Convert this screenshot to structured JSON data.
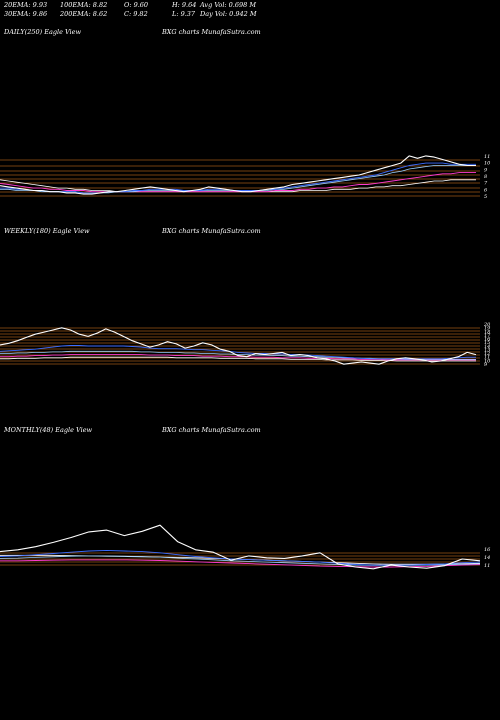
{
  "header": {
    "row1": [
      {
        "key": "20ema",
        "text": "20EMA: 9.93"
      },
      {
        "key": "100ema",
        "text": "100EMA: 8.82"
      },
      {
        "key": "open",
        "text": "O: 9.60"
      },
      {
        "key": "high",
        "text": "H: 9.64"
      },
      {
        "key": "avgvol",
        "text": "Avg Vol: 0.698  M"
      }
    ],
    "row2": [
      {
        "key": "30ema",
        "text": "30EMA: 9.86"
      },
      {
        "key": "200ema",
        "text": "200EMA: 8.62"
      },
      {
        "key": "close",
        "text": "C: 9.82"
      },
      {
        "key": "low",
        "text": "L: 9.37"
      },
      {
        "key": "dayvol",
        "text": "Day Vol: 0.942  M"
      }
    ]
  },
  "panels": [
    {
      "key": "daily",
      "label": "DAILY(250) Eagle   View",
      "watermark": "BXG charts MunafaSutra.com"
    },
    {
      "key": "weekly",
      "label": "WEEKLY(180) Eagle   View",
      "watermark": "BXG charts MunafaSutra.com"
    },
    {
      "key": "monthly",
      "label": "MONTHLY(48) Eagle   View",
      "watermark": "BXG charts MunafaSutra.com"
    }
  ],
  "colors": {
    "background": "#000000",
    "price": "#ffffff",
    "levels": "#b8651a",
    "ema_fast": "#3b6cff",
    "ema_mid": "#9ad0ff",
    "ema_slow": "#ff3bd0",
    "ema_long": "#ffffff"
  },
  "chart_data": [
    {
      "type": "line",
      "panel": "daily",
      "price_axis_labels": [
        "11",
        "10",
        "9",
        "8",
        "7",
        "6",
        "5"
      ],
      "series": [
        {
          "values": [
            8.1,
            8.0,
            7.9,
            7.8,
            7.7,
            7.7,
            7.6,
            7.6,
            7.5,
            7.5,
            7.4,
            7.4,
            7.5,
            7.6,
            7.6,
            7.7,
            7.8,
            7.9,
            8.0,
            7.9,
            7.8,
            7.7,
            7.6,
            7.7,
            7.8,
            8.0,
            7.9,
            7.8,
            7.7,
            7.6,
            7.6,
            7.7,
            7.8,
            7.9,
            8.0,
            8.2,
            8.3,
            8.4,
            8.5,
            8.6,
            8.7,
            8.8,
            8.9,
            9.0,
            9.2,
            9.4,
            9.6,
            9.8,
            10.0,
            10.6,
            10.4,
            10.6,
            10.5,
            10.3,
            10.1,
            9.9,
            9.8,
            9.8
          ]
        },
        {
          "values": [
            7.9,
            7.9,
            7.8,
            7.8,
            7.7,
            7.7,
            7.6,
            7.6,
            7.6,
            7.6,
            7.5,
            7.5,
            7.5,
            7.6,
            7.6,
            7.6,
            7.7,
            7.7,
            7.8,
            7.8,
            7.8,
            7.8,
            7.7,
            7.7,
            7.7,
            7.8,
            7.8,
            7.8,
            7.7,
            7.7,
            7.7,
            7.7,
            7.8,
            7.8,
            7.9,
            8.0,
            8.1,
            8.2,
            8.3,
            8.4,
            8.5,
            8.6,
            8.7,
            8.8,
            8.9,
            9.0,
            9.2,
            9.4,
            9.6,
            9.8,
            9.9,
            10.0,
            10.0,
            10.0,
            9.9,
            9.9,
            9.9,
            9.9
          ]
        },
        {
          "values": [
            7.8,
            7.8,
            7.7,
            7.7,
            7.7,
            7.6,
            7.6,
            7.6,
            7.6,
            7.6,
            7.5,
            7.5,
            7.5,
            7.5,
            7.6,
            7.6,
            7.6,
            7.7,
            7.7,
            7.7,
            7.7,
            7.7,
            7.7,
            7.7,
            7.7,
            7.7,
            7.7,
            7.7,
            7.7,
            7.7,
            7.7,
            7.7,
            7.7,
            7.8,
            7.8,
            7.9,
            8.0,
            8.1,
            8.2,
            8.3,
            8.4,
            8.5,
            8.6,
            8.7,
            8.8,
            8.9,
            9.0,
            9.2,
            9.3,
            9.5,
            9.6,
            9.7,
            9.8,
            9.8,
            9.8,
            9.8,
            9.8,
            9.8
          ]
        },
        {
          "values": [
            8.3,
            8.2,
            8.1,
            8.0,
            7.9,
            7.9,
            7.8,
            7.8,
            7.7,
            7.7,
            7.7,
            7.6,
            7.6,
            7.6,
            7.6,
            7.6,
            7.6,
            7.6,
            7.6,
            7.6,
            7.6,
            7.6,
            7.6,
            7.6,
            7.6,
            7.6,
            7.6,
            7.6,
            7.6,
            7.6,
            7.6,
            7.6,
            7.6,
            7.7,
            7.7,
            7.7,
            7.8,
            7.8,
            7.9,
            7.9,
            8.0,
            8.0,
            8.1,
            8.2,
            8.2,
            8.3,
            8.4,
            8.5,
            8.6,
            8.7,
            8.8,
            8.9,
            9.0,
            9.1,
            9.1,
            9.2,
            9.2,
            9.2
          ]
        },
        {
          "values": [
            8.6,
            8.5,
            8.4,
            8.3,
            8.2,
            8.1,
            8.0,
            7.9,
            7.9,
            7.8,
            7.8,
            7.7,
            7.7,
            7.7,
            7.6,
            7.6,
            7.6,
            7.6,
            7.6,
            7.6,
            7.6,
            7.6,
            7.6,
            7.6,
            7.6,
            7.6,
            7.6,
            7.6,
            7.6,
            7.6,
            7.6,
            7.6,
            7.6,
            7.6,
            7.6,
            7.6,
            7.7,
            7.7,
            7.7,
            7.7,
            7.8,
            7.8,
            7.8,
            7.9,
            7.9,
            8.0,
            8.0,
            8.1,
            8.1,
            8.2,
            8.3,
            8.4,
            8.5,
            8.5,
            8.6,
            8.6,
            8.6,
            8.6
          ]
        }
      ]
    },
    {
      "type": "line",
      "panel": "weekly",
      "price_axis_labels": [
        "20",
        "19",
        "18",
        "17",
        "16",
        "15",
        "14",
        "13",
        "12",
        "11",
        "10",
        "9"
      ],
      "series": [
        {
          "values": [
            13.2,
            13.5,
            14.0,
            14.6,
            15.2,
            15.6,
            16.0,
            16.4,
            16.0,
            15.2,
            14.8,
            15.4,
            16.2,
            15.6,
            14.8,
            14.0,
            13.4,
            12.8,
            13.2,
            13.8,
            13.4,
            12.6,
            13.0,
            13.6,
            13.2,
            12.4,
            12.0,
            11.2,
            11.0,
            11.6,
            11.4,
            11.6,
            11.8,
            11.2,
            11.4,
            11.2,
            10.8,
            10.6,
            10.2,
            9.6,
            9.8,
            10.0,
            9.8,
            9.6,
            10.2,
            10.6,
            10.8,
            10.6,
            10.4,
            10.0,
            10.2,
            10.6,
            11.0,
            11.8,
            11.4
          ]
        },
        {
          "values": [
            12.0,
            12.1,
            12.2,
            12.3,
            12.4,
            12.6,
            12.8,
            13.0,
            13.1,
            13.1,
            13.0,
            13.0,
            13.0,
            13.0,
            13.0,
            12.9,
            12.8,
            12.6,
            12.5,
            12.5,
            12.5,
            12.4,
            12.3,
            12.3,
            12.2,
            12.1,
            12.0,
            11.8,
            11.7,
            11.6,
            11.6,
            11.5,
            11.5,
            11.4,
            11.4,
            11.3,
            11.2,
            11.1,
            11.0,
            10.9,
            10.8,
            10.7,
            10.6,
            10.6,
            10.6,
            10.6,
            10.6,
            10.6,
            10.6,
            10.6,
            10.6,
            10.7,
            10.8,
            10.9,
            10.9
          ]
        },
        {
          "values": [
            11.6,
            11.6,
            11.7,
            11.7,
            11.8,
            11.8,
            11.9,
            11.9,
            12.0,
            12.0,
            12.0,
            12.0,
            12.0,
            12.0,
            12.0,
            12.0,
            11.9,
            11.9,
            11.8,
            11.8,
            11.8,
            11.7,
            11.7,
            11.6,
            11.6,
            11.5,
            11.5,
            11.4,
            11.4,
            11.3,
            11.3,
            11.2,
            11.2,
            11.1,
            11.1,
            11.0,
            11.0,
            10.9,
            10.9,
            10.8,
            10.8,
            10.7,
            10.7,
            10.6,
            10.6,
            10.6,
            10.5,
            10.5,
            10.5,
            10.5,
            10.5,
            10.5,
            10.5,
            10.5,
            10.5
          ]
        },
        {
          "values": [
            11.0,
            11.0,
            11.1,
            11.1,
            11.2,
            11.2,
            11.3,
            11.3,
            11.4,
            11.4,
            11.4,
            11.4,
            11.4,
            11.4,
            11.4,
            11.4,
            11.4,
            11.3,
            11.3,
            11.3,
            11.2,
            11.2,
            11.2,
            11.1,
            11.1,
            11.1,
            11.0,
            11.0,
            11.0,
            10.9,
            10.9,
            10.9,
            10.8,
            10.8,
            10.8,
            10.7,
            10.7,
            10.7,
            10.6,
            10.6,
            10.6,
            10.5,
            10.5,
            10.5,
            10.4,
            10.4,
            10.4,
            10.4,
            10.4,
            10.4,
            10.4,
            10.4,
            10.4,
            10.4,
            10.4
          ]
        },
        {
          "values": [
            10.6,
            10.6,
            10.7,
            10.7,
            10.7,
            10.8,
            10.8,
            10.8,
            10.9,
            10.9,
            10.9,
            10.9,
            10.9,
            10.9,
            10.9,
            10.9,
            10.9,
            10.9,
            10.9,
            10.9,
            10.8,
            10.8,
            10.8,
            10.8,
            10.8,
            10.7,
            10.7,
            10.7,
            10.7,
            10.6,
            10.6,
            10.6,
            10.6,
            10.5,
            10.5,
            10.5,
            10.5,
            10.4,
            10.4,
            10.4,
            10.4,
            10.3,
            10.3,
            10.3,
            10.3,
            10.2,
            10.2,
            10.2,
            10.2,
            10.2,
            10.2,
            10.2,
            10.2,
            10.2,
            10.2
          ]
        }
      ]
    },
    {
      "type": "line",
      "panel": "monthly",
      "price_axis_labels": [
        "16",
        "14",
        "11"
      ],
      "series": [
        {
          "values": [
            14.0,
            14.6,
            15.6,
            17.0,
            18.6,
            20.4,
            21.0,
            19.2,
            20.6,
            22.6,
            17.2,
            14.6,
            13.8,
            11.2,
            12.6,
            12.0,
            11.8,
            12.6,
            13.6,
            10.0,
            9.0,
            8.4,
            9.6,
            9.0,
            8.6,
            9.4,
            11.6,
            11.0
          ]
        },
        {
          "values": [
            12.4,
            12.6,
            13.0,
            13.4,
            13.8,
            14.2,
            14.4,
            14.2,
            14.0,
            13.6,
            13.0,
            12.4,
            12.0,
            11.6,
            11.4,
            11.2,
            11.0,
            10.8,
            10.6,
            10.2,
            9.8,
            9.6,
            9.6,
            9.6,
            9.8,
            10.0,
            10.4,
            10.6
          ]
        },
        {
          "values": [
            11.8,
            11.9,
            12.1,
            12.3,
            12.5,
            12.6,
            12.6,
            12.5,
            12.4,
            12.2,
            11.9,
            11.6,
            11.3,
            11.0,
            10.8,
            10.6,
            10.4,
            10.2,
            10.0,
            9.8,
            9.6,
            9.5,
            9.5,
            9.5,
            9.6,
            9.7,
            9.9,
            10.0
          ]
        },
        {
          "values": [
            11.0,
            11.0,
            11.1,
            11.2,
            11.3,
            11.3,
            11.3,
            11.3,
            11.2,
            11.1,
            10.9,
            10.7,
            10.5,
            10.3,
            10.1,
            9.9,
            9.7,
            9.5,
            9.3,
            9.2,
            9.1,
            9.0,
            9.0,
            9.1,
            9.2,
            9.4,
            9.6,
            9.8
          ]
        },
        {
          "values": [
            12.8,
            12.8,
            12.8,
            12.8,
            12.7,
            12.6,
            12.5,
            12.4,
            12.3,
            12.2,
            12.1,
            12.0,
            11.8,
            11.6,
            11.4,
            11.2,
            11.0,
            10.8,
            10.6,
            10.4,
            10.2,
            10.0,
            9.9,
            9.9,
            9.9,
            10.0,
            10.1,
            10.2
          ]
        }
      ]
    }
  ]
}
